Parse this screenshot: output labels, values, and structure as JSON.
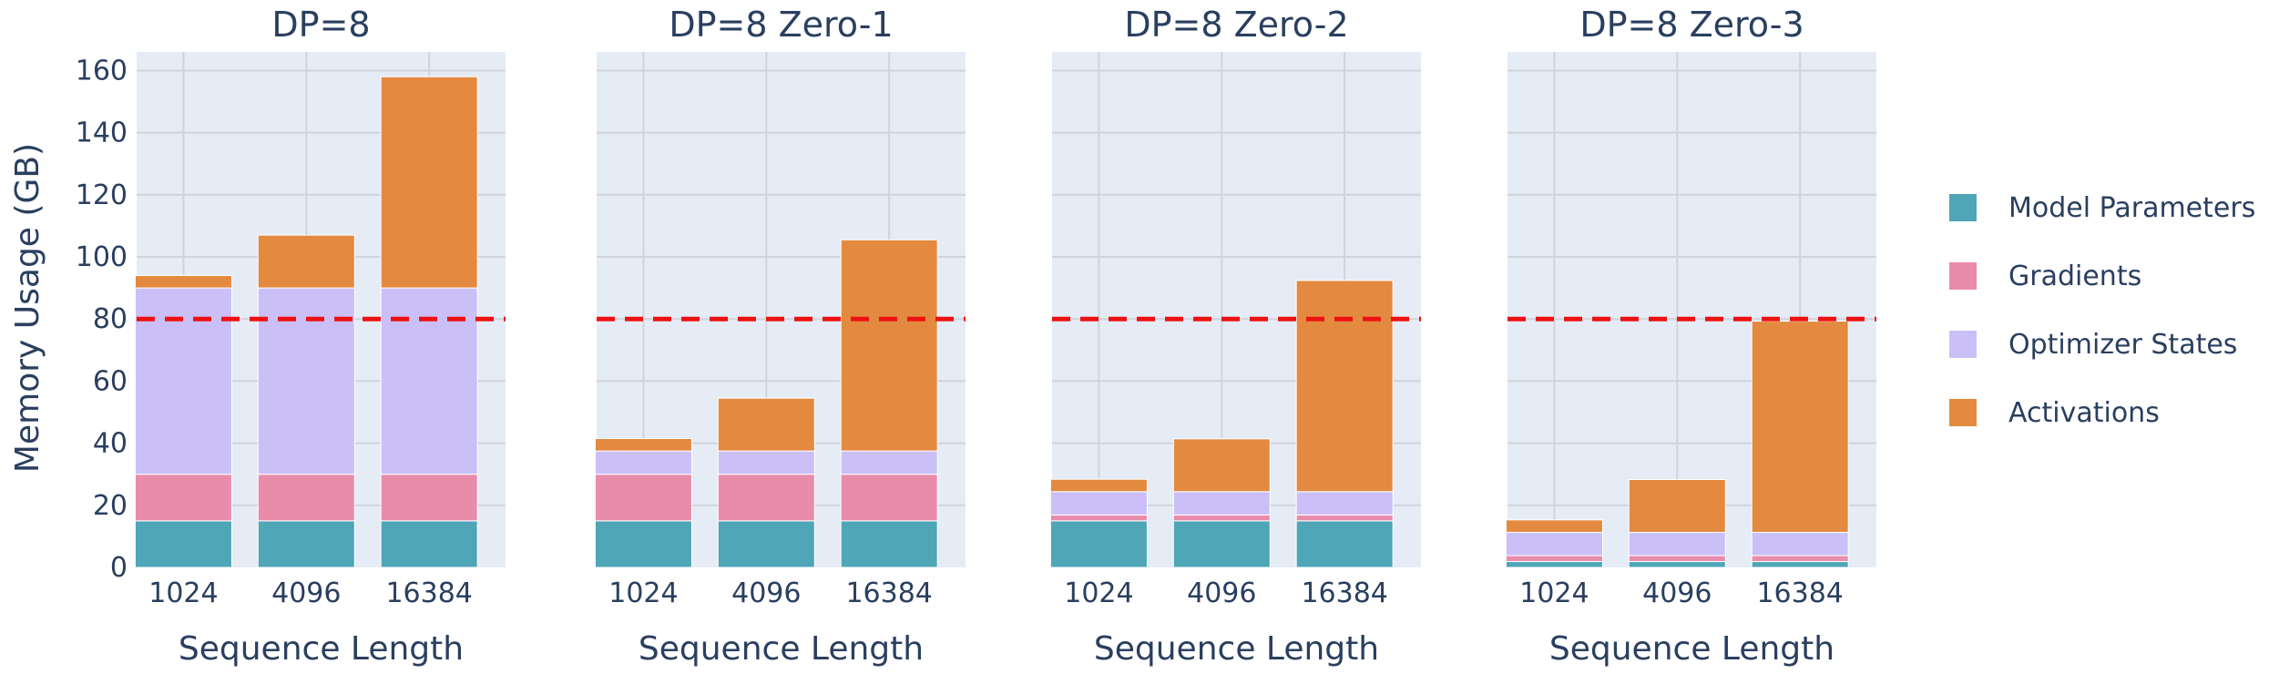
{
  "chart_data": {
    "type": "bar",
    "stacked": true,
    "ylabel": "Memory Usage (GB)",
    "xlabel": "Sequence Length",
    "ylim": [
      0,
      166
    ],
    "yticks": [
      0,
      20,
      40,
      60,
      80,
      100,
      120,
      140,
      160
    ],
    "threshold": 80,
    "threshold_color": "#ee1111",
    "legend_position": "right",
    "series": [
      {
        "name": "Model Parameters",
        "color": "#4ea6b7"
      },
      {
        "name": "Gradients",
        "color": "#e98bab"
      },
      {
        "name": "Optimizer States",
        "color": "#cbbff7"
      },
      {
        "name": "Activations",
        "color": "#e38a40"
      }
    ],
    "panels": [
      {
        "title": "DP=8",
        "categories": [
          "1024",
          "4096",
          "16384"
        ],
        "values": {
          "Model Parameters": [
            15,
            15,
            15
          ],
          "Gradients": [
            15,
            15,
            15
          ],
          "Optimizer States": [
            60,
            60,
            60
          ],
          "Activations": [
            4,
            17,
            68
          ]
        }
      },
      {
        "title": "DP=8 Zero-1",
        "categories": [
          "1024",
          "4096",
          "16384"
        ],
        "values": {
          "Model Parameters": [
            15,
            15,
            15
          ],
          "Gradients": [
            15,
            15,
            15
          ],
          "Optimizer States": [
            7.5,
            7.5,
            7.5
          ],
          "Activations": [
            4,
            17,
            68
          ]
        }
      },
      {
        "title": "DP=8 Zero-2",
        "categories": [
          "1024",
          "4096",
          "16384"
        ],
        "values": {
          "Model Parameters": [
            15,
            15,
            15
          ],
          "Gradients": [
            1.9,
            1.9,
            1.9
          ],
          "Optimizer States": [
            7.5,
            7.5,
            7.5
          ],
          "Activations": [
            4,
            17,
            68
          ]
        }
      },
      {
        "title": "DP=8 Zero-3",
        "categories": [
          "1024",
          "4096",
          "16384"
        ],
        "values": {
          "Model Parameters": [
            1.9,
            1.9,
            1.9
          ],
          "Gradients": [
            1.9,
            1.9,
            1.9
          ],
          "Optimizer States": [
            7.5,
            7.5,
            7.5
          ],
          "Activations": [
            4,
            17,
            68
          ]
        }
      }
    ]
  }
}
